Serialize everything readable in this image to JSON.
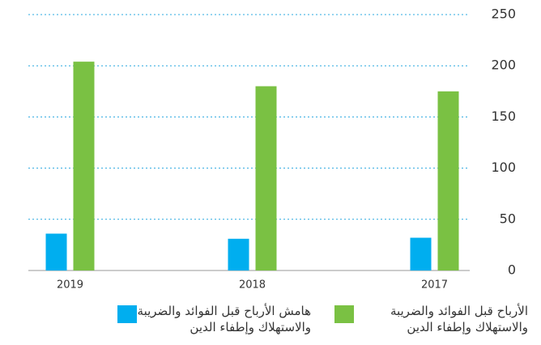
{
  "chart_data": {
    "type": "bar",
    "categories": [
      "2019",
      "2018",
      "2017"
    ],
    "series": [
      {
        "name": "هامش الأرباح قبل الفوائد والضريبة والاستهلاك وإطفاء الدين",
        "color": "#00aeef",
        "values": [
          36,
          31,
          32
        ]
      },
      {
        "name": "الأرباح قبل الفوائد والضريبة والاستهلاك وإطفاء الدين",
        "color": "#7ac143",
        "values": [
          204,
          180,
          175
        ]
      }
    ],
    "ylim": [
      0,
      250
    ],
    "yticks": [
      0,
      50,
      100,
      150,
      200,
      250
    ],
    "grid": true
  }
}
